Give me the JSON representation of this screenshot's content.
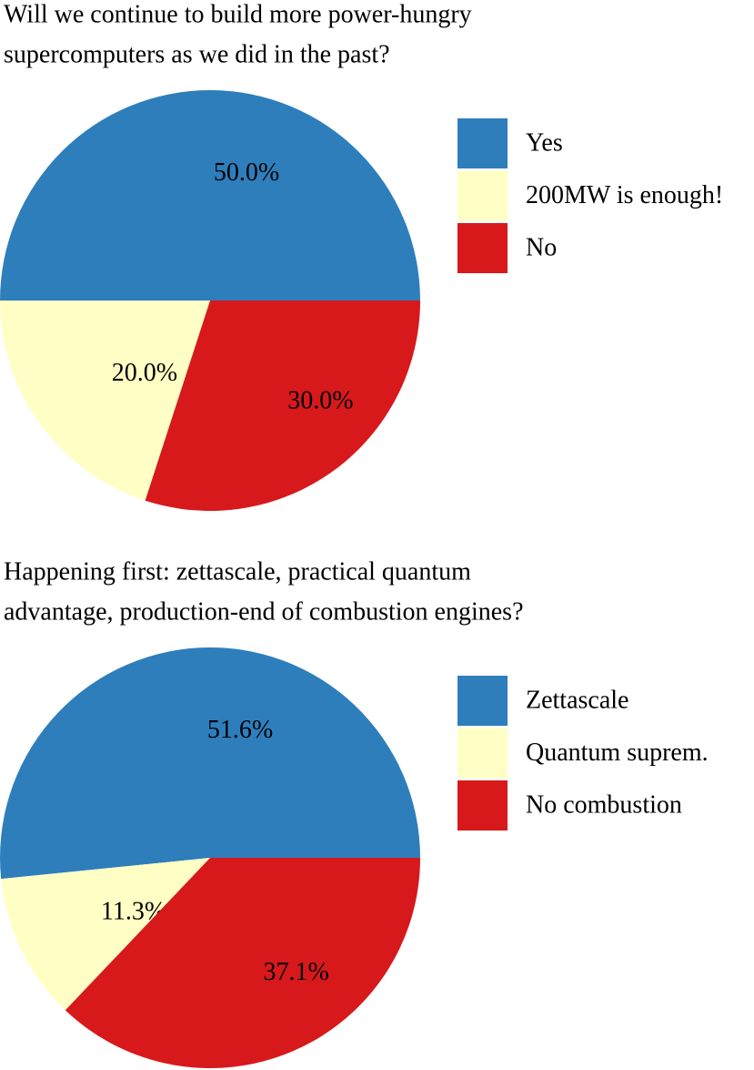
{
  "chart_data": [
    {
      "type": "pie",
      "title": [
        "Will we continue to build more power-hungry",
        "supercomputers as we did in the past?"
      ],
      "categories": [
        "Yes",
        "200MW is enough!",
        "No"
      ],
      "values": [
        50,
        20,
        30
      ],
      "value_labels": [
        "50.0%",
        "20.0%",
        "30.0%"
      ],
      "colors": [
        "#2e7ebc",
        "#ffffc5",
        "#d7191c"
      ]
    },
    {
      "type": "pie",
      "title": [
        "Happening first: zettascale, practical quantum",
        "advantage, production-end of combustion engines?"
      ],
      "categories": [
        "Zettascale",
        "Quantum suprem.",
        "No combustion"
      ],
      "values": [
        51.6,
        11.3,
        37.1
      ],
      "value_labels": [
        "51.6%",
        "11.3%",
        "37.1%"
      ],
      "colors": [
        "#2e7ebc",
        "#ffffc5",
        "#d7191c"
      ]
    }
  ]
}
